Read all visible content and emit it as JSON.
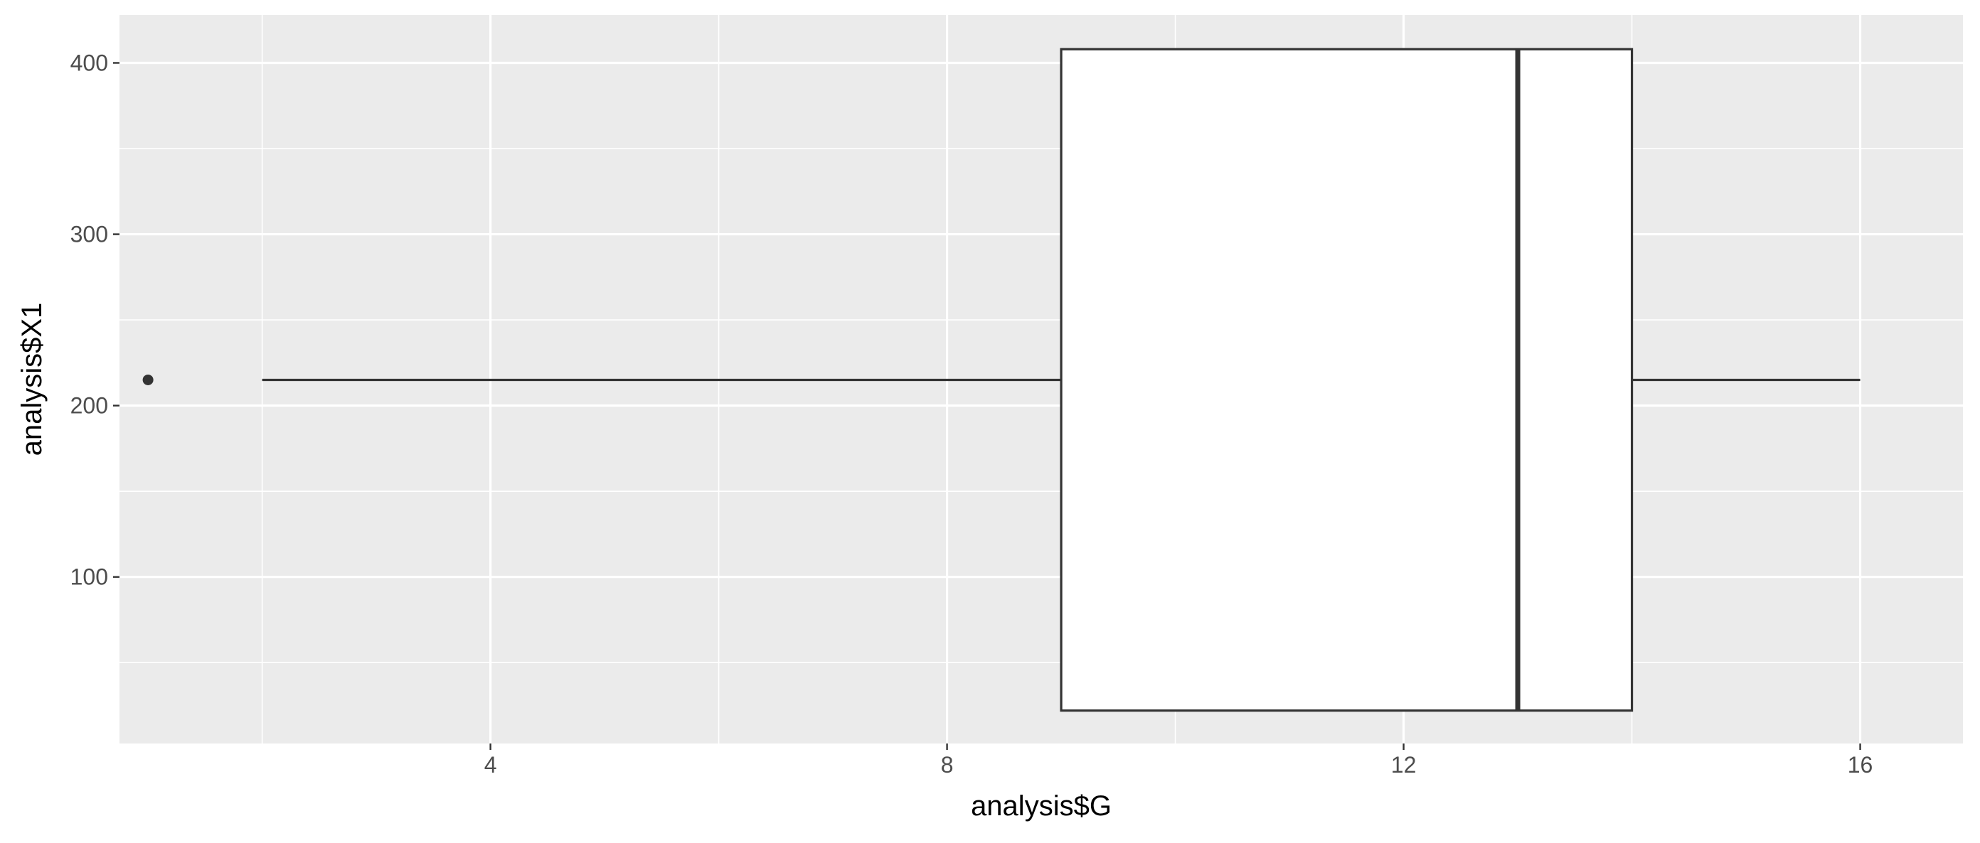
{
  "chart_data": {
    "type": "boxplot",
    "orientation": "horizontal",
    "title": "",
    "xlabel": "analysis$G",
    "ylabel": "analysis$X1",
    "xlim": [
      0.75,
      16.9
    ],
    "ylim": [
      2.8,
      428
    ],
    "x_ticks": [
      4,
      8,
      12,
      16
    ],
    "x_tick_labels": [
      "4",
      "8",
      "12",
      "16"
    ],
    "x_minor_ticks": [
      2,
      6,
      10,
      14
    ],
    "y_ticks": [
      100,
      200,
      300,
      400
    ],
    "y_tick_labels": [
      "100",
      "200",
      "300",
      "400"
    ],
    "y_minor_ticks": [
      50,
      150,
      250,
      350
    ],
    "grid": true,
    "legend": "none",
    "box": {
      "whisker_low": 2,
      "q1": 9,
      "median": 13,
      "q3": 14,
      "whisker_high": 16,
      "y_center": 215,
      "y_lower": 22,
      "y_upper": 408
    },
    "outliers": [
      {
        "x": 1,
        "y": 215
      }
    ],
    "colors": {
      "panel_background": "#EBEBEB",
      "grid_line": "#FFFFFF",
      "box_fill": "#FFFFFF",
      "box_line": "#333333",
      "outlier": "#333333",
      "tick_label": "#4D4D4D",
      "axis_title": "#000000",
      "tick_mark": "#333333"
    }
  }
}
